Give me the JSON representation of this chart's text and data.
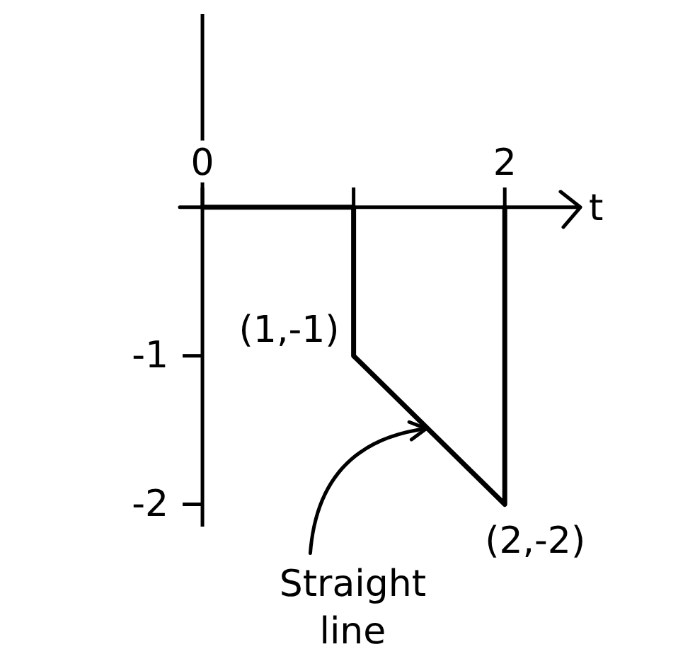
{
  "chart_data": {
    "type": "line",
    "xlabel": "t",
    "x": [
      0,
      1,
      1,
      2,
      2
    ],
    "series": [
      {
        "color": "#000000",
        "values": [
          0,
          0,
          -1,
          -2,
          0
        ]
      }
    ],
    "xlim": [
      -0.15,
      2.5
    ],
    "ylim": [
      -2.15,
      1.3
    ],
    "xticks": [
      0,
      {
        "value": 1,
        "label": null
      },
      2
    ],
    "yticks": [
      {
        "value": -1,
        "label": "-1"
      },
      {
        "value": -2,
        "label": "-2"
      }
    ],
    "annotations": [
      {
        "text": "(1,-1)",
        "x": 1,
        "y": -1
      },
      {
        "text": "(2,-2)",
        "x": 2,
        "y": -2
      },
      {
        "text": "Straight line",
        "x": 1.5,
        "y": -1.5
      }
    ]
  }
}
